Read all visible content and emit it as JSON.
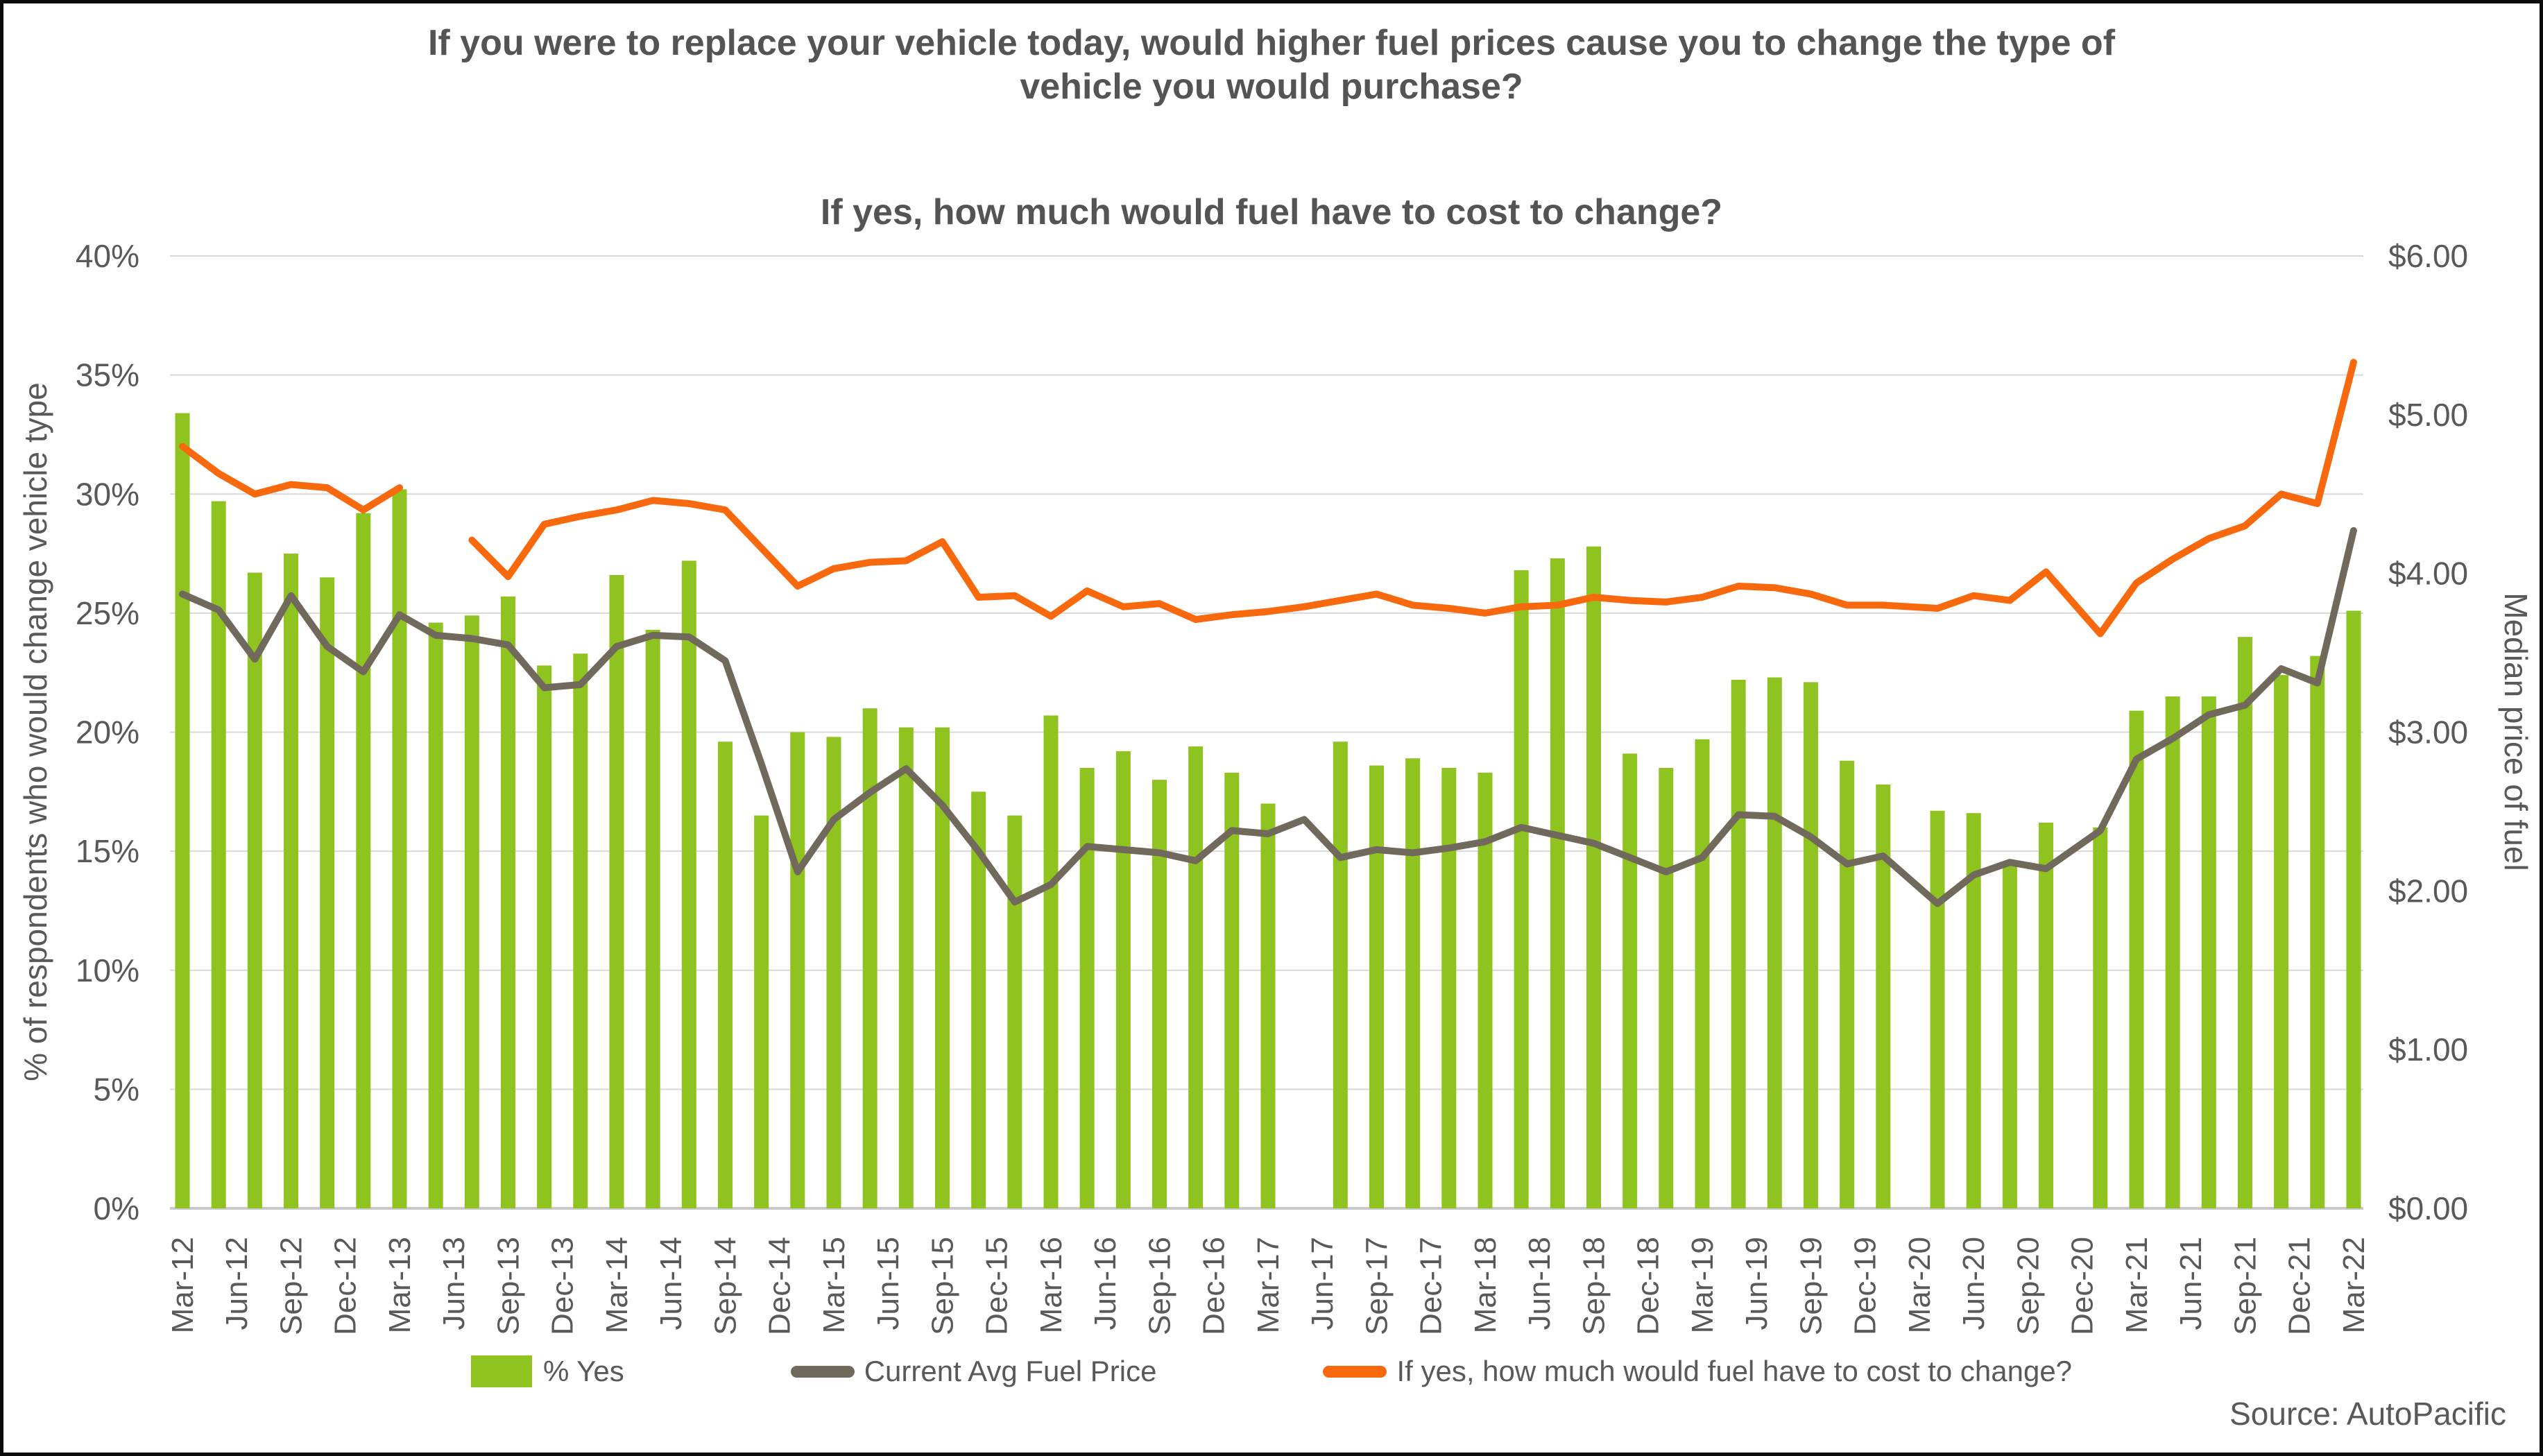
{
  "title": {
    "line1": "If you were to replace your vehicle today, would higher fuel prices cause you to change the type of vehicle you would purchase?",
    "line2": "If yes, how much would fuel have to cost to change?"
  },
  "source": "Source: AutoPacific",
  "colors": {
    "bar_green": "#8FC31F",
    "line_gray": "#716A5C",
    "line_orange": "#F8690D",
    "text_gray": "#595959",
    "gridline": "#D9D9D9",
    "axis_line": "#C9C9C9"
  },
  "y_axis_left": {
    "title": "% of respondents who would change vehicle type",
    "tick_labels": [
      "0%",
      "5%",
      "10%",
      "15%",
      "20%",
      "25%",
      "30%",
      "35%",
      "40%"
    ],
    "min": 0,
    "max": 40
  },
  "y_axis_right": {
    "title": "Median price of fuel",
    "tick_labels": [
      "$0.00",
      "$1.00",
      "$2.00",
      "$3.00",
      "$4.00",
      "$5.00",
      "$6.00"
    ],
    "min": 0,
    "max": 6
  },
  "x_axis": {
    "tick_labels": [
      "Mar-12",
      "Jun-12",
      "Sep-12",
      "Dec-12",
      "Mar-13",
      "Jun-13",
      "Sep-13",
      "Dec-13",
      "Mar-14",
      "Jun-14",
      "Sep-14",
      "Dec-14",
      "Mar-15",
      "Jun-15",
      "Sep-15",
      "Dec-15",
      "Mar-16",
      "Jun-16",
      "Sep-16",
      "Dec-16",
      "Mar-17",
      "Jun-17",
      "Sep-17",
      "Dec-17",
      "Mar-18",
      "Jun-18",
      "Sep-18",
      "Dec-18",
      "Mar-19",
      "Jun-19",
      "Sep-19",
      "Dec-19",
      "Mar-20",
      "Jun-20",
      "Sep-20",
      "Dec-20",
      "Mar-21",
      "Jun-21",
      "Sep-21",
      "Dec-21",
      "Mar-22"
    ]
  },
  "legend": [
    {
      "label": "% Yes",
      "type": "bar",
      "color": "#8FC31F"
    },
    {
      "label": "Current Avg Fuel Price",
      "type": "line",
      "color": "#716A5C"
    },
    {
      "label": "If yes, how much would fuel have to cost to change?",
      "type": "line",
      "color": "#F8690D"
    }
  ],
  "chart_data": {
    "type": "combo-bar-line",
    "x_categories": [
      "Mar-12",
      "May-12",
      "Jul-12",
      "Sep-12",
      "Nov-12",
      "Jan-13",
      "Mar-13",
      "May-13",
      "Jul-13",
      "Sep-13",
      "Nov-13",
      "Jan-14",
      "Mar-14",
      "May-14",
      "Jul-14",
      "Sep-14",
      "Nov-14",
      "Jan-15",
      "Mar-15",
      "May-15",
      "Jul-15",
      "Sep-15",
      "Nov-15",
      "Jan-16",
      "Mar-16",
      "May-16",
      "Jul-16",
      "Sep-16",
      "Nov-16",
      "Jan-17",
      "Mar-17",
      "May-17",
      "Jul-17",
      "Sep-17",
      "Nov-17",
      "Jan-18",
      "Mar-18",
      "May-18",
      "Jul-18",
      "Sep-18",
      "Nov-18",
      "Jan-19",
      "Mar-19",
      "May-19",
      "Jul-19",
      "Sep-19",
      "Nov-19",
      "Jan-20",
      "Apr-20",
      "Jun-20",
      "Aug-20",
      "Oct-20",
      "Jan-21",
      "Mar-21",
      "May-21",
      "Jul-21",
      "Sep-21",
      "Nov-21",
      "Jan-22",
      "Mar-22"
    ],
    "series": [
      {
        "name": "% Yes",
        "type": "bar",
        "axis": "left",
        "unit": "%",
        "values": [
          33.4,
          29.7,
          26.7,
          27.5,
          26.5,
          29.2,
          30.2,
          24.6,
          24.9,
          25.7,
          22.8,
          23.3,
          26.6,
          24.3,
          27.2,
          19.6,
          16.5,
          20.0,
          19.8,
          21.0,
          20.2,
          20.2,
          17.5,
          16.5,
          20.7,
          18.5,
          19.2,
          18.0,
          19.4,
          18.3,
          17.0,
          null,
          19.6,
          18.6,
          18.9,
          18.5,
          18.3,
          26.8,
          27.3,
          27.8,
          19.1,
          18.5,
          19.7,
          22.2,
          22.3,
          22.1,
          18.8,
          17.8,
          16.7,
          16.6,
          14.4,
          16.2,
          16.0,
          20.9,
          21.5,
          21.5,
          24.0,
          22.4,
          23.2,
          25.1
        ]
      },
      {
        "name": "Current Avg Fuel Price",
        "type": "line",
        "axis": "right",
        "unit": "$",
        "values": [
          3.87,
          3.77,
          3.46,
          3.86,
          3.54,
          3.38,
          3.74,
          3.61,
          3.59,
          3.55,
          3.28,
          3.3,
          3.54,
          3.61,
          3.6,
          3.45,
          2.8,
          2.12,
          2.45,
          2.62,
          2.77,
          2.54,
          2.25,
          1.93,
          2.04,
          2.28,
          2.26,
          2.24,
          2.19,
          2.38,
          2.36,
          2.45,
          2.21,
          2.26,
          2.24,
          2.27,
          2.31,
          2.4,
          2.35,
          2.3,
          2.21,
          2.12,
          2.21,
          2.48,
          2.47,
          2.34,
          2.17,
          2.22,
          1.92,
          2.1,
          2.18,
          2.14,
          2.38,
          2.83,
          2.96,
          3.11,
          3.17,
          3.4,
          3.31,
          4.27
        ]
      },
      {
        "name": "If yes, how much would fuel have to cost to change?",
        "type": "line",
        "axis": "right",
        "unit": "$",
        "values": [
          4.8,
          4.63,
          4.5,
          4.56,
          4.54,
          4.4,
          4.54,
          null,
          4.21,
          3.98,
          4.31,
          4.36,
          4.4,
          4.46,
          4.44,
          4.4,
          4.16,
          3.92,
          4.03,
          4.07,
          4.08,
          4.2,
          3.85,
          3.86,
          3.73,
          3.89,
          3.79,
          3.81,
          3.71,
          3.74,
          3.76,
          3.79,
          3.83,
          3.87,
          3.8,
          3.78,
          3.75,
          3.79,
          3.8,
          3.85,
          3.83,
          3.82,
          3.85,
          3.92,
          3.91,
          3.87,
          3.8,
          3.8,
          3.78,
          3.86,
          3.83,
          4.01,
          3.62,
          3.94,
          4.09,
          4.22,
          4.3,
          4.5,
          4.44,
          5.33
        ]
      }
    ],
    "ylim_left": [
      0,
      40
    ],
    "ylim_right": [
      0,
      6
    ],
    "grid": "horizontal"
  }
}
